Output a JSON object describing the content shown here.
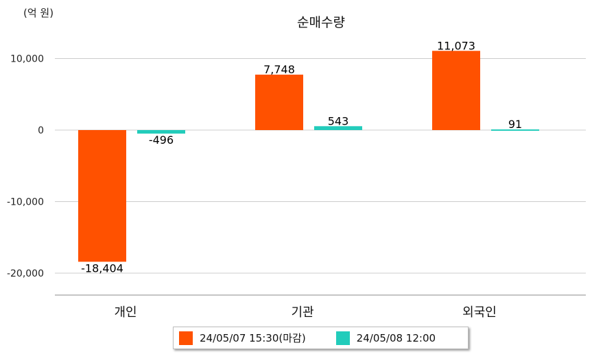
{
  "chart_data": {
    "type": "bar",
    "title": "순매수량",
    "unit_label": "(억 원)",
    "categories": [
      "개인",
      "기관",
      "외국인"
    ],
    "series": [
      {
        "name": "24/05/07 15:30(마감)",
        "color": "#ff5100",
        "values": [
          -18404,
          7748,
          11073
        ],
        "labels": [
          "-18,404",
          "7,748",
          "11,073"
        ]
      },
      {
        "name": "24/05/08 12:00",
        "color": "#22ccbb",
        "values": [
          -496,
          543,
          91
        ],
        "labels": [
          "-496",
          "543",
          "91"
        ]
      }
    ],
    "y_ticks": [
      10000,
      0,
      -10000,
      -20000
    ],
    "y_tick_labels": [
      "10,000",
      "0",
      "-10,000",
      "-20,000"
    ],
    "ylim": [
      -23000,
      14000
    ],
    "grid": true,
    "legend_position": "bottom"
  }
}
